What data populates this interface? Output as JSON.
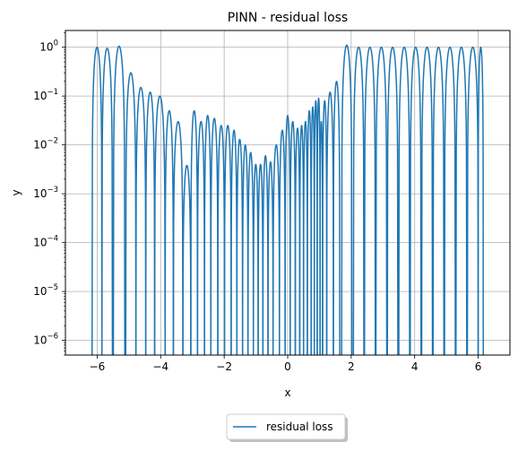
{
  "chart_data": {
    "type": "line",
    "title": "PINN - residual loss",
    "xlabel": "x",
    "ylabel": "y",
    "xlim": [
      -7,
      7
    ],
    "ylim": [
      5e-07,
      2.2
    ],
    "yscale": "log",
    "grid": true,
    "legend_position": "below-center",
    "x_ticks": [
      -6,
      -4,
      -2,
      0,
      2,
      4,
      6
    ],
    "x_tick_labels": [
      "−6",
      "−4",
      "−2",
      "0",
      "2",
      "4",
      "6"
    ],
    "y_ticks": [
      1e-06,
      1e-05,
      0.0001,
      0.001,
      0.01,
      0.1,
      1
    ],
    "y_tick_labels": [
      {
        "base": "10",
        "exp": "−6"
      },
      {
        "base": "10",
        "exp": "−5"
      },
      {
        "base": "10",
        "exp": "−4"
      },
      {
        "base": "10",
        "exp": "−3"
      },
      {
        "base": "10",
        "exp": "−2"
      },
      {
        "base": "10",
        "exp": "−1"
      },
      {
        "base": "10",
        "exp": "0"
      }
    ],
    "series": [
      {
        "name": "residual loss",
        "color": "#1f77b4",
        "floor": 5e-07,
        "lobes": [
          {
            "x0": -6.16,
            "x1": -5.85,
            "peak": 1.0
          },
          {
            "x0": -5.85,
            "x1": -5.52,
            "peak": 0.95
          },
          {
            "x0": -5.49,
            "x1": -5.13,
            "peak": 1.05
          },
          {
            "x0": -5.1,
            "x1": -4.78,
            "peak": 0.3
          },
          {
            "x0": -4.78,
            "x1": -4.47,
            "peak": 0.15
          },
          {
            "x0": -4.47,
            "x1": -4.19,
            "peak": 0.12
          },
          {
            "x0": -4.19,
            "x1": -3.86,
            "peak": 0.1
          },
          {
            "x0": -3.86,
            "x1": -3.6,
            "peak": 0.05
          },
          {
            "x0": -3.6,
            "x1": -3.3,
            "peak": 0.03
          },
          {
            "x0": -3.3,
            "x1": -3.05,
            "peak": 0.0038
          },
          {
            "x0": -3.05,
            "x1": -2.84,
            "peak": 0.05
          },
          {
            "x0": -2.84,
            "x1": -2.62,
            "peak": 0.03
          },
          {
            "x0": -2.62,
            "x1": -2.42,
            "peak": 0.04
          },
          {
            "x0": -2.42,
            "x1": -2.2,
            "peak": 0.035
          },
          {
            "x0": -2.2,
            "x1": -1.99,
            "peak": 0.025
          },
          {
            "x0": -1.99,
            "x1": -1.78,
            "peak": 0.025
          },
          {
            "x0": -1.78,
            "x1": -1.6,
            "peak": 0.02
          },
          {
            "x0": -1.6,
            "x1": -1.42,
            "peak": 0.013
          },
          {
            "x0": -1.42,
            "x1": -1.25,
            "peak": 0.01
          },
          {
            "x0": -1.25,
            "x1": -1.08,
            "peak": 0.007
          },
          {
            "x0": -1.08,
            "x1": -0.93,
            "peak": 0.004
          },
          {
            "x0": -0.93,
            "x1": -0.78,
            "peak": 0.004
          },
          {
            "x0": -0.78,
            "x1": -0.62,
            "peak": 0.006
          },
          {
            "x0": -0.62,
            "x1": -0.46,
            "peak": 0.0045
          },
          {
            "x0": -0.46,
            "x1": -0.26,
            "peak": 0.01
          },
          {
            "x0": -0.26,
            "x1": -0.08,
            "peak": 0.02
          },
          {
            "x0": -0.08,
            "x1": 0.08,
            "peak": 0.04
          },
          {
            "x0": 0.08,
            "x1": 0.24,
            "peak": 0.03
          },
          {
            "x0": 0.24,
            "x1": 0.38,
            "peak": 0.022
          },
          {
            "x0": 0.38,
            "x1": 0.5,
            "peak": 0.025
          },
          {
            "x0": 0.5,
            "x1": 0.62,
            "peak": 0.03
          },
          {
            "x0": 0.62,
            "x1": 0.74,
            "peak": 0.05
          },
          {
            "x0": 0.74,
            "x1": 0.84,
            "peak": 0.06
          },
          {
            "x0": 0.84,
            "x1": 0.93,
            "peak": 0.08
          },
          {
            "x0": 0.93,
            "x1": 1.02,
            "peak": 0.09
          },
          {
            "x0": 1.02,
            "x1": 1.1,
            "peak": 0.03
          },
          {
            "x0": 1.1,
            "x1": 1.23,
            "peak": 0.08
          },
          {
            "x0": 1.23,
            "x1": 1.44,
            "peak": 0.12
          },
          {
            "x0": 1.44,
            "x1": 1.64,
            "peak": 0.2
          },
          {
            "x0": 1.7,
            "x1": 2.02,
            "peak": 1.1
          },
          {
            "x0": 2.07,
            "x1": 2.4,
            "peak": 1.0
          },
          {
            "x0": 2.42,
            "x1": 2.76,
            "peak": 1.0
          },
          {
            "x0": 2.78,
            "x1": 3.12,
            "peak": 1.0
          },
          {
            "x0": 3.14,
            "x1": 3.47,
            "peak": 1.0
          },
          {
            "x0": 3.5,
            "x1": 3.84,
            "peak": 1.0
          },
          {
            "x0": 3.86,
            "x1": 4.2,
            "peak": 1.0
          },
          {
            "x0": 4.22,
            "x1": 4.56,
            "peak": 1.0
          },
          {
            "x0": 4.58,
            "x1": 4.92,
            "peak": 1.0
          },
          {
            "x0": 4.94,
            "x1": 5.28,
            "peak": 1.0
          },
          {
            "x0": 5.3,
            "x1": 5.64,
            "peak": 1.0
          },
          {
            "x0": 5.66,
            "x1": 6.0,
            "peak": 1.0
          },
          {
            "x0": 6.0,
            "x1": 6.16,
            "peak": 1.0
          }
        ]
      }
    ]
  }
}
